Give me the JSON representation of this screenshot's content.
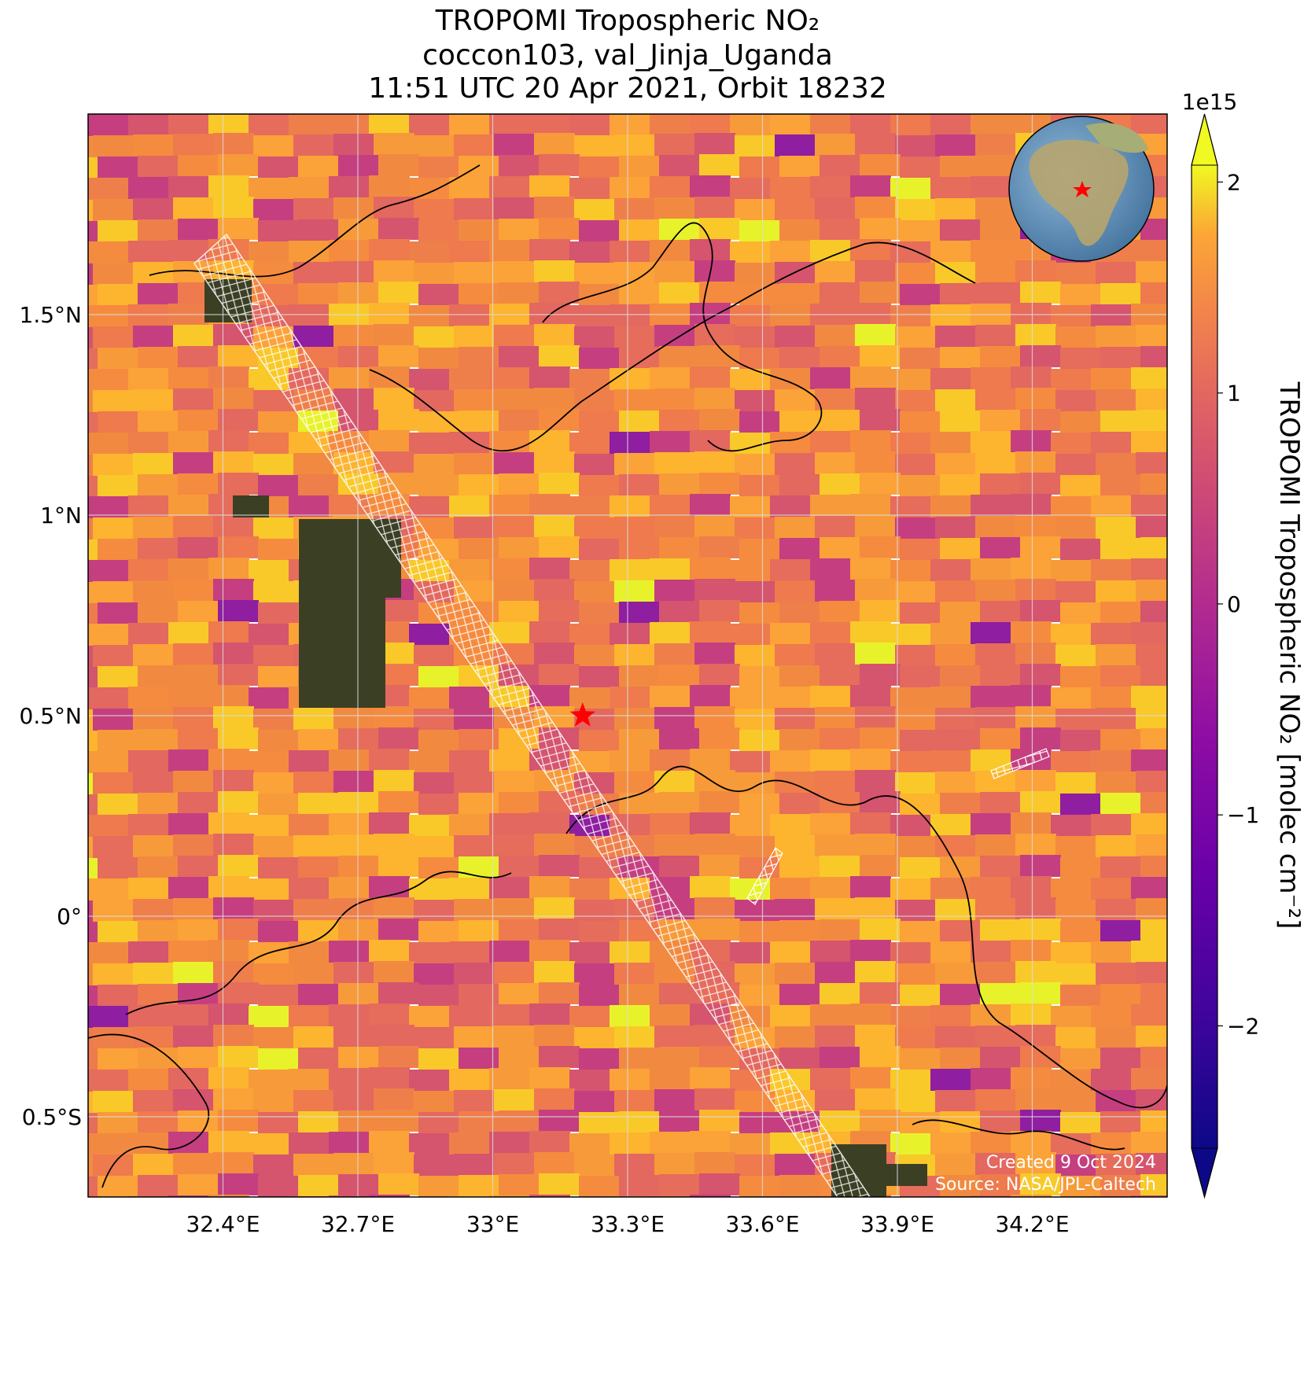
{
  "chart_data": {
    "type": "map",
    "title_lines": [
      "TROPOMI Tropospheric NO₂",
      "coccon103, val_Jinja_Uganda",
      "11:51 UTC 20 Apr 2021, Orbit 18232"
    ],
    "xlim": [
      32.1,
      34.5
    ],
    "ylim": [
      -0.7,
      2.0
    ],
    "xticks": [
      {
        "value": 32.4,
        "label": "32.4°E"
      },
      {
        "value": 32.7,
        "label": "32.7°E"
      },
      {
        "value": 33.0,
        "label": "33°E"
      },
      {
        "value": 33.3,
        "label": "33.3°E"
      },
      {
        "value": 33.6,
        "label": "33.6°E"
      },
      {
        "value": 33.9,
        "label": "33.9°E"
      },
      {
        "value": 34.2,
        "label": "34.2°E"
      }
    ],
    "yticks": [
      {
        "value": 1.5,
        "label": "1.5°N"
      },
      {
        "value": 1.0,
        "label": "1°N"
      },
      {
        "value": 0.5,
        "label": "0.5°N"
      },
      {
        "value": 0,
        "label": "0°"
      },
      {
        "value": -0.5,
        "label": "0.5°S"
      }
    ],
    "grid": true,
    "marker": {
      "lon": 33.2,
      "lat": 0.5,
      "color": "#ff0000"
    },
    "colorbar": {
      "label": "TROPOMI Tropospheric NO₂ [molec cm⁻²]",
      "offset_label": "1e15",
      "clim": [
        -2.58,
        2.08
      ],
      "ticks": [
        {
          "value": 2,
          "label": "2"
        },
        {
          "value": 1,
          "label": "1"
        },
        {
          "value": 0,
          "label": "0"
        },
        {
          "value": -1,
          "label": "−1"
        },
        {
          "value": -2,
          "label": "−2"
        }
      ]
    },
    "footnotes": [
      "Created 9 Oct 2024",
      "Source: NASA/JPL-Caltech"
    ]
  }
}
